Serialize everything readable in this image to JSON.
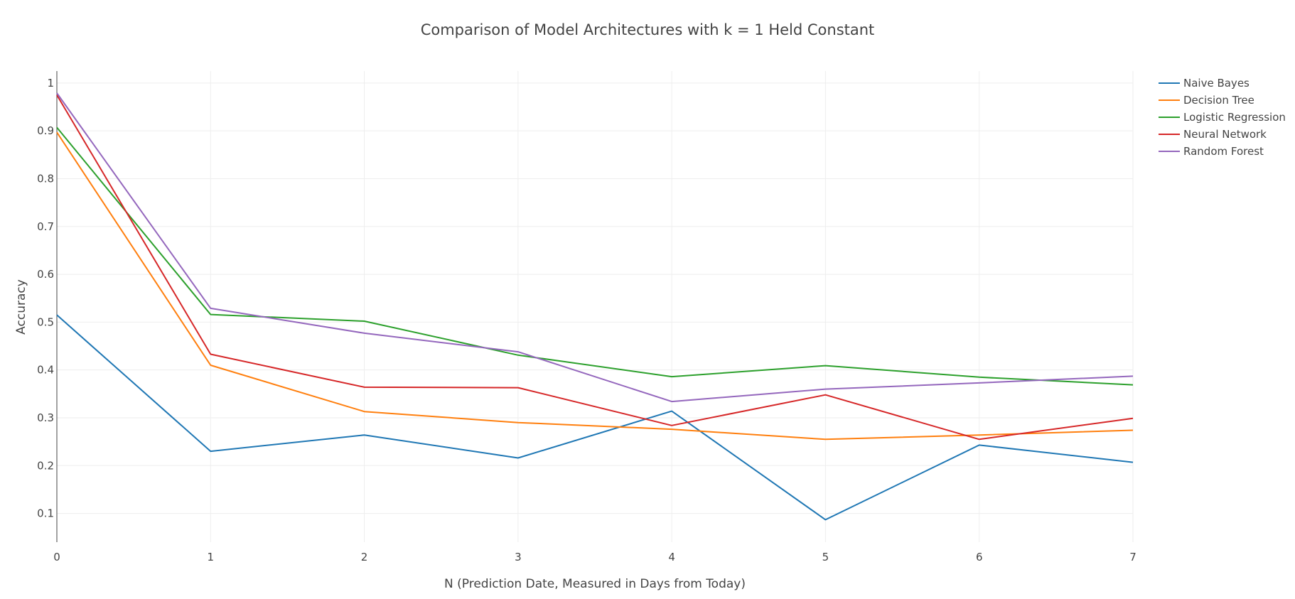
{
  "chart_data": {
    "type": "line",
    "title": "Comparison of Model Architectures with k = 1 Held Constant",
    "xlabel": "N (Prediction Date, Measured in Days from Today)",
    "ylabel": "Accuracy",
    "x": [
      0,
      1,
      2,
      3,
      4,
      5,
      6,
      7
    ],
    "xlim": [
      0,
      7
    ],
    "ylim": [
      0.04,
      1.025
    ],
    "x_ticks": [
      "0",
      "1",
      "2",
      "3",
      "4",
      "5",
      "6",
      "7"
    ],
    "y_ticks": [
      "0.1",
      "0.2",
      "0.3",
      "0.4",
      "0.5",
      "0.6",
      "0.7",
      "0.8",
      "0.9",
      "1"
    ],
    "y_tick_values": [
      0.1,
      0.2,
      0.3,
      0.4,
      0.5,
      0.6,
      0.7,
      0.8,
      0.9,
      1.0
    ],
    "grid": true,
    "legend_position": "top-right",
    "series": [
      {
        "name": "Naive Bayes",
        "color": "#1f77b4",
        "values": [
          0.515,
          0.23,
          0.264,
          0.216,
          0.314,
          0.087,
          0.243,
          0.207
        ]
      },
      {
        "name": "Decision Tree",
        "color": "#ff7f0e",
        "values": [
          0.897,
          0.41,
          0.313,
          0.29,
          0.276,
          0.255,
          0.264,
          0.274
        ]
      },
      {
        "name": "Logistic Regression",
        "color": "#2ca02c",
        "values": [
          0.907,
          0.516,
          0.502,
          0.431,
          0.386,
          0.409,
          0.385,
          0.369
        ]
      },
      {
        "name": "Neural Network",
        "color": "#d62728",
        "values": [
          0.975,
          0.433,
          0.364,
          0.363,
          0.284,
          0.348,
          0.255,
          0.299
        ]
      },
      {
        "name": "Random Forest",
        "color": "#9467bd",
        "values": [
          0.979,
          0.529,
          0.477,
          0.438,
          0.334,
          0.36,
          0.373,
          0.387
        ]
      }
    ]
  }
}
